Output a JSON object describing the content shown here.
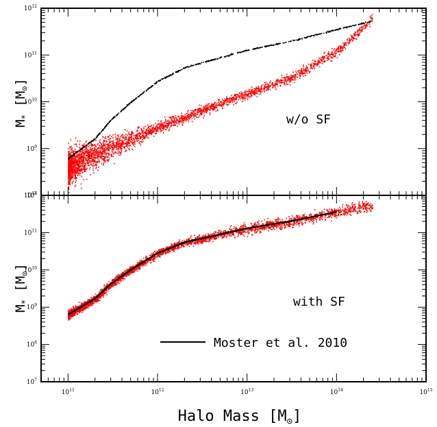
{
  "chart_data": {
    "type": "scatter",
    "xlabel": "Halo Mass [M",
    "xlabel_sub": "⊙",
    "xlabel_close": "]",
    "x_log_scale": true,
    "xlim": [
      50000000000.0,
      1000000000000000.0
    ],
    "x_ticks": [
      {
        "label": "10",
        "exp": "11"
      },
      {
        "label": "10",
        "exp": "12"
      },
      {
        "label": "10",
        "exp": "13"
      },
      {
        "label": "10",
        "exp": "14"
      },
      {
        "label": "10",
        "exp": "15"
      }
    ],
    "colors": {
      "simulation": "#ff0000",
      "relation": "#000000"
    },
    "panels": [
      {
        "name": "top",
        "ylabel": "M",
        "ylabel_sub": "*",
        "ylabel_unit": "[M",
        "ylabel_unit_sub": "⊙",
        "ylabel_close": "]",
        "y_log_scale": true,
        "ylim": [
          100000000.0,
          1000000000000.0
        ],
        "y_ticks": [
          {
            "label": "10",
            "exp": "8"
          },
          {
            "label": "10",
            "exp": "9"
          },
          {
            "label": "10",
            "exp": "10"
          },
          {
            "label": "10",
            "exp": "11"
          },
          {
            "label": "10",
            "exp": "12"
          }
        ],
        "annotation": "w/o SF",
        "series": [
          {
            "values": [
              [
                100000000000.0,
                630000000.0
              ],
              [
                200000000000.0,
                1700000000.0
              ],
              [
                300000000000.0,
                4200000000.0
              ],
              [
                500000000000.0,
                10000000000.0
              ],
              [
                1000000000000.0,
                28000000000.0
              ],
              [
                2000000000000.0,
                55000000000.0
              ],
              [
                5000000000000.0,
                90000000000.0
              ],
              [
                10000000000000.0,
                130000000000.0
              ],
              [
                30000000000000.0,
                200000000000.0
              ],
              [
                100000000000000.0,
                360000000000.0
              ],
              [
                250000000000000.0,
                550000000000.0
              ]
            ],
            "color": "#000000",
            "style": "points"
          },
          {
            "values": [
              [
                100000000000.0,
                400000000.0
              ],
              [
                200000000000.0,
                750000000.0
              ],
              [
                500000000000.0,
                1600000000.0
              ],
              [
                1000000000000.0,
                2800000000.0
              ],
              [
                3000000000000.0,
                6500000000.0
              ],
              [
                10000000000000.0,
                15000000000.0
              ],
              [
                30000000000000.0,
                32000000000.0
              ],
              [
                100000000000000.0,
                120000000000.0
              ],
              [
                250000000000000.0,
                600000000000.0
              ]
            ],
            "color": "#ff0000",
            "style": "points",
            "scatter_dex_low_mass": 0.4
          }
        ]
      },
      {
        "name": "bottom",
        "ylabel": "M",
        "ylabel_sub": "*",
        "ylabel_unit": "[M",
        "ylabel_unit_sub": "⊙",
        "ylabel_close": "]",
        "y_log_scale": true,
        "ylim": [
          10000000.0,
          1000000000000.0
        ],
        "y_ticks": [
          {
            "label": "10",
            "exp": "7"
          },
          {
            "label": "10",
            "exp": "8"
          },
          {
            "label": "10",
            "exp": "9"
          },
          {
            "label": "10",
            "exp": "10"
          },
          {
            "label": "10",
            "exp": "11"
          },
          {
            "label": "10",
            "exp": "12"
          }
        ],
        "annotation": "with SF",
        "legend": "Moster et al. 2010",
        "series": [
          {
            "values": [
              [
                100000000000.0,
                630000000.0
              ],
              [
                200000000000.0,
                1700000000.0
              ],
              [
                300000000000.0,
                4200000000.0
              ],
              [
                500000000000.0,
                10000000000.0
              ],
              [
                1000000000000.0,
                28000000000.0
              ],
              [
                2000000000000.0,
                55000000000.0
              ],
              [
                5000000000000.0,
                90000000000.0
              ],
              [
                10000000000000.0,
                130000000000.0
              ],
              [
                30000000000000.0,
                200000000000.0
              ],
              [
                100000000000000.0,
                360000000000.0
              ],
              [
                250000000000000.0,
                550000000000.0
              ]
            ],
            "color": "#ff0000",
            "style": "points"
          },
          {
            "name": "Moster et al. 2010",
            "values": [
              [
                100000000000.0,
                630000000.0
              ],
              [
                200000000000.0,
                1700000000.0
              ],
              [
                300000000000.0,
                4200000000.0
              ],
              [
                500000000000.0,
                10000000000.0
              ],
              [
                1000000000000.0,
                28000000000.0
              ],
              [
                2000000000000.0,
                55000000000.0
              ],
              [
                5000000000000.0,
                90000000000.0
              ],
              [
                10000000000000.0,
                130000000000.0
              ],
              [
                30000000000000.0,
                200000000000.0
              ],
              [
                100000000000000.0,
                360000000000.0
              ]
            ],
            "color": "#000000",
            "style": "line"
          }
        ]
      }
    ]
  }
}
